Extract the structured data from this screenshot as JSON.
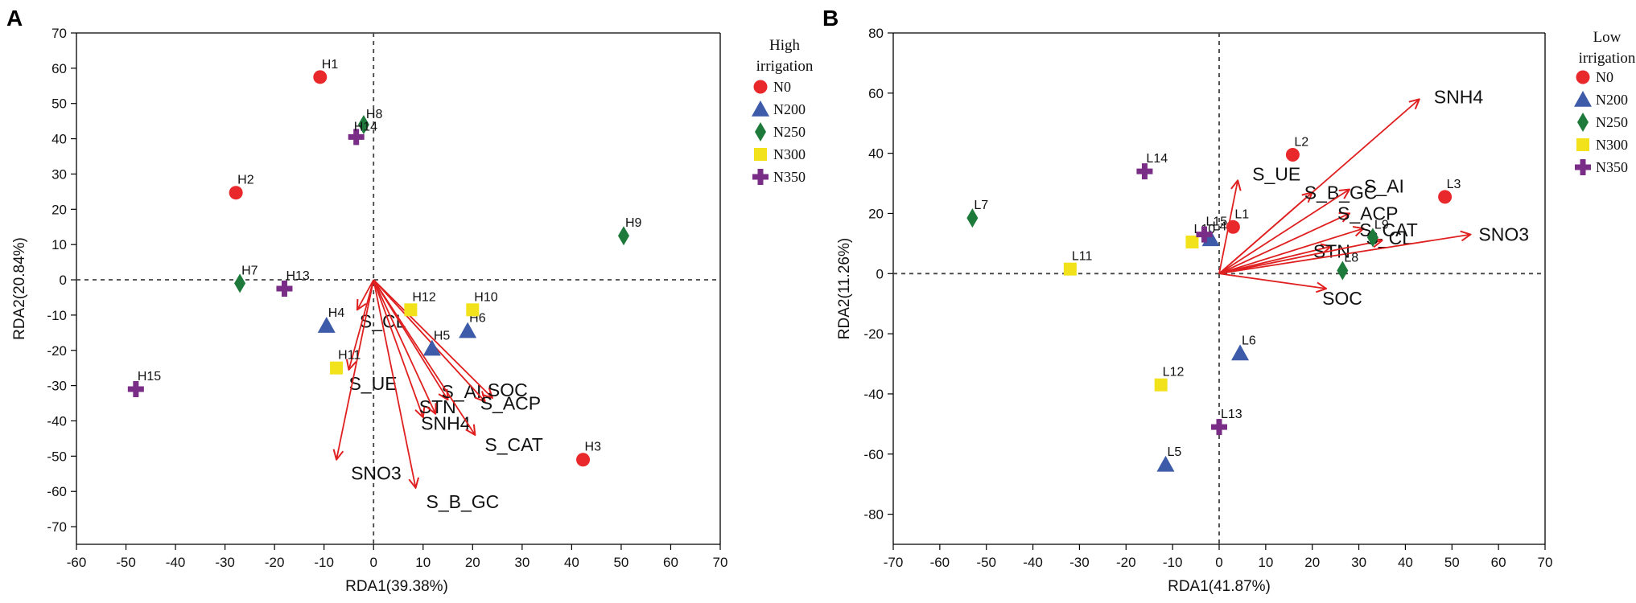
{
  "colors": {
    "N0": "#e8282b",
    "N200": "#3d5ba8",
    "N250": "#1d7a3a",
    "N300": "#f2e21b",
    "N350": "#7a2d86",
    "arrow": "#e02020"
  },
  "chart_data": [
    {
      "type": "scatter",
      "panel_label": "A",
      "xlabel": "RDA1(39.38%)",
      "ylabel": "RDA2(20.84%)",
      "xlim": [
        -60,
        70
      ],
      "ylim": [
        -75,
        70
      ],
      "xticks": [
        -60,
        -50,
        -40,
        -30,
        -20,
        -10,
        0,
        10,
        20,
        30,
        40,
        50,
        60,
        70
      ],
      "yticks": [
        -70,
        -60,
        -50,
        -40,
        -30,
        -20,
        -10,
        0,
        10,
        20,
        30,
        40,
        50,
        60,
        70
      ],
      "legend": {
        "title_line1": "High",
        "title_line2": "irrigation",
        "entries": [
          {
            "label": "N0",
            "marker": "circle",
            "group": "N0"
          },
          {
            "label": "N200",
            "marker": "triangle",
            "group": "N200"
          },
          {
            "label": "N250",
            "marker": "diamond",
            "group": "N250"
          },
          {
            "label": "N300",
            "marker": "square",
            "group": "N300"
          },
          {
            "label": "N350",
            "marker": "cross",
            "group": "N350"
          }
        ]
      },
      "points": [
        {
          "label": "H1",
          "x": -10.8,
          "y": 57.5,
          "group": "N0"
        },
        {
          "label": "H2",
          "x": -27.8,
          "y": 24.7,
          "group": "N0"
        },
        {
          "label": "H3",
          "x": 42.3,
          "y": -51,
          "group": "N0"
        },
        {
          "label": "H4",
          "x": -9.5,
          "y": -13,
          "group": "N200"
        },
        {
          "label": "H5",
          "x": 11.8,
          "y": -19.5,
          "group": "N200"
        },
        {
          "label": "H6",
          "x": 19,
          "y": -14.5,
          "group": "N200"
        },
        {
          "label": "H7",
          "x": -27,
          "y": -1,
          "group": "N250"
        },
        {
          "label": "H8",
          "x": -2,
          "y": 44,
          "group": "N250"
        },
        {
          "label": "H9",
          "x": 50.5,
          "y": 12.5,
          "group": "N250"
        },
        {
          "label": "H10",
          "x": 20,
          "y": -8.5,
          "group": "N300"
        },
        {
          "label": "H11",
          "x": -7.5,
          "y": -25,
          "group": "N300"
        },
        {
          "label": "H12",
          "x": 7.5,
          "y": -8.5,
          "group": "N300"
        },
        {
          "label": "H13",
          "x": -18,
          "y": -2.5,
          "group": "N350"
        },
        {
          "label": "H14",
          "x": -3.5,
          "y": 40.5,
          "group": "N350"
        },
        {
          "label": "H15",
          "x": -48,
          "y": -31,
          "group": "N350"
        }
      ],
      "vectors": [
        {
          "label": "S_CL",
          "x": -3.3,
          "y": -8.5
        },
        {
          "label": "S_UE",
          "x": -5,
          "y": -25.5
        },
        {
          "label": "SNO3",
          "x": -7.5,
          "y": -51
        },
        {
          "label": "S_B_GC",
          "x": 8.5,
          "y": -59
        },
        {
          "label": "STN",
          "x": 10,
          "y": -39
        },
        {
          "label": "S_AI",
          "x": 15,
          "y": -34
        },
        {
          "label": "SNH4",
          "x": 12.5,
          "y": -38
        },
        {
          "label": "SOC",
          "x": 24,
          "y": -33.5
        },
        {
          "label": "S_ACP",
          "x": 22.5,
          "y": -34.5
        },
        {
          "label": "S_CAT",
          "x": 20.5,
          "y": -44
        }
      ]
    },
    {
      "type": "scatter",
      "panel_label": "B",
      "xlabel": "RDA1(41.87%)",
      "ylabel": "RDA2(11.26%)",
      "xlim": [
        -70,
        70
      ],
      "ylim": [
        -90,
        80
      ],
      "xticks": [
        -70,
        -60,
        -50,
        -40,
        -30,
        -20,
        -10,
        0,
        10,
        20,
        30,
        40,
        50,
        60,
        70
      ],
      "yticks": [
        -80,
        -60,
        -40,
        -20,
        0,
        20,
        40,
        60,
        80
      ],
      "legend": {
        "title_line1": "Low",
        "title_line2": "irrigation",
        "entries": [
          {
            "label": "N0",
            "marker": "circle",
            "group": "N0"
          },
          {
            "label": "N200",
            "marker": "triangle",
            "group": "N200"
          },
          {
            "label": "N250",
            "marker": "diamond",
            "group": "N250"
          },
          {
            "label": "N300",
            "marker": "square",
            "group": "N300"
          },
          {
            "label": "N350",
            "marker": "cross",
            "group": "N350"
          }
        ]
      },
      "points": [
        {
          "label": "L1",
          "x": 3,
          "y": 15.5,
          "group": "N0"
        },
        {
          "label": "L2",
          "x": 15.8,
          "y": 39.5,
          "group": "N0"
        },
        {
          "label": "L3",
          "x": 48.5,
          "y": 25.5,
          "group": "N0"
        },
        {
          "label": "L4",
          "x": -1.8,
          "y": 11.5,
          "group": "N200"
        },
        {
          "label": "L5",
          "x": -11.5,
          "y": -63.5,
          "group": "N200"
        },
        {
          "label": "L6",
          "x": 4.5,
          "y": -26.5,
          "group": "N200"
        },
        {
          "label": "L7",
          "x": -53,
          "y": 18.5,
          "group": "N250"
        },
        {
          "label": "L8",
          "x": 26.5,
          "y": 1,
          "group": "N250"
        },
        {
          "label": "L9",
          "x": 33,
          "y": 12,
          "group": "N250"
        },
        {
          "label": "L10",
          "x": -5.8,
          "y": 10.5,
          "group": "N300"
        },
        {
          "label": "L11",
          "x": -32,
          "y": 1.5,
          "group": "N300"
        },
        {
          "label": "L12",
          "x": -12.5,
          "y": -37,
          "group": "N300"
        },
        {
          "label": "L13",
          "x": 0,
          "y": -51,
          "group": "N350"
        },
        {
          "label": "L14",
          "x": -16,
          "y": 34,
          "group": "N350"
        },
        {
          "label": "L15",
          "x": -3.2,
          "y": 13,
          "group": "N350"
        }
      ],
      "vectors": [
        {
          "label": "SNH4",
          "x": 43,
          "y": 58
        },
        {
          "label": "S_UE",
          "x": 4,
          "y": 31
        },
        {
          "label": "S_B_GC",
          "x": 20,
          "y": 27
        },
        {
          "label": "S_AI",
          "x": 28,
          "y": 28
        },
        {
          "label": "S_ACP",
          "x": 28,
          "y": 20
        },
        {
          "label": "S_CAT",
          "x": 31,
          "y": 15
        },
        {
          "label": "STN",
          "x": 24,
          "y": 9
        },
        {
          "label": "S_CL",
          "x": 35,
          "y": 11
        },
        {
          "label": "SNO3",
          "x": 54,
          "y": 13
        },
        {
          "label": "SOC",
          "x": 23,
          "y": -5
        }
      ]
    }
  ]
}
